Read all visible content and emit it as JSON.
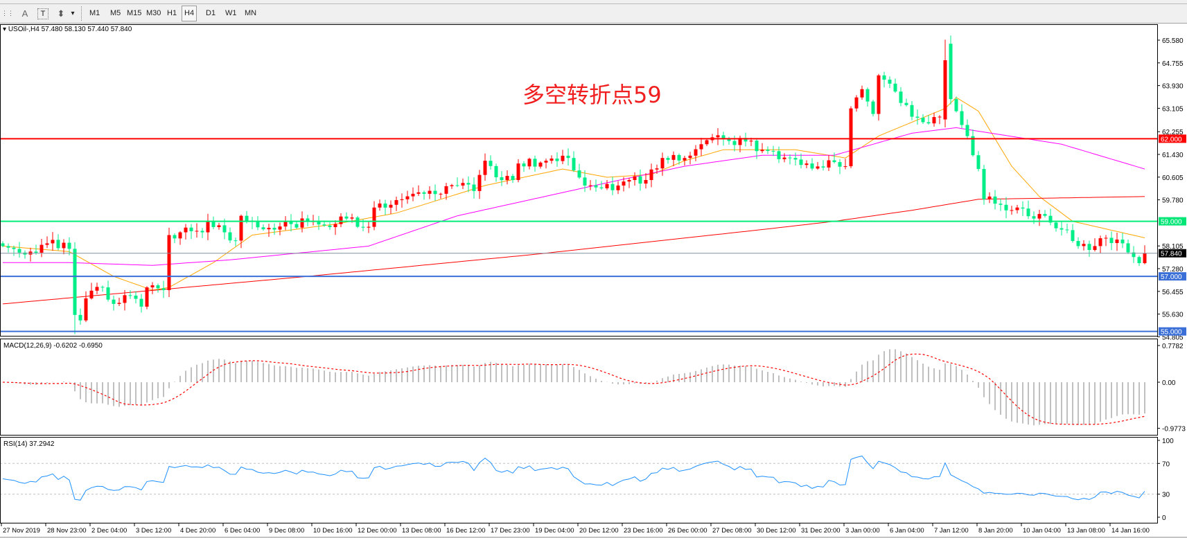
{
  "toolbar": {
    "tools": [
      {
        "name": "period-separator-icon",
        "glyph": "⋮⋮"
      },
      {
        "name": "text-tool",
        "glyph": "A"
      },
      {
        "name": "text-label-tool",
        "glyph": "T"
      },
      {
        "name": "arrows-tool",
        "glyph": "⬍"
      },
      {
        "name": "dropdown",
        "glyph": "▾"
      }
    ],
    "timeframes": [
      "M1",
      "M5",
      "M15",
      "M30",
      "H1",
      "H4",
      "D1",
      "W1",
      "MN"
    ],
    "active_timeframe": "H4"
  },
  "header": {
    "symbol_label": "USOil-,H4",
    "ohlc": "57.480 58.130 57.440 57.840"
  },
  "annotation": "多空转折点59",
  "colors": {
    "bull": "#ff0000",
    "bear": "#00ee88",
    "ma_fast": "#ffa500",
    "ma_mid": "#ff00ff",
    "ma_slow": "#ff0000",
    "rsi": "#1e90ff",
    "macd_hist": "#c0c0c0",
    "macd_signal": "#ff0000"
  },
  "chart_data": {
    "type": "candlestick",
    "price_axis": {
      "range": [
        54.805,
        65.58
      ],
      "ticks": [
        "65.580",
        "64.755",
        "63.930",
        "63.105",
        "62.255",
        "61.430",
        "60.605",
        "59.780",
        "58.105",
        "57.280",
        "56.455",
        "55.630",
        "54.805"
      ]
    },
    "levels": [
      {
        "label": "62.000",
        "value": 62.0,
        "color": "#ff0000"
      },
      {
        "label": "59.000",
        "value": 59.0,
        "color": "#00ee77"
      },
      {
        "label": "57.000",
        "value": 57.0,
        "color": "#3a6fd8"
      },
      {
        "label": "55.000",
        "value": 55.0,
        "color": "#3a6fd8"
      }
    ],
    "current_price": {
      "label": "57.840",
      "value": 57.84
    },
    "close_anchors": [
      [
        0,
        58.1
      ],
      [
        5,
        57.9
      ],
      [
        8,
        58.2
      ],
      [
        12,
        58.0
      ],
      [
        13,
        55.6
      ],
      [
        14,
        55.4
      ],
      [
        15,
        56.2
      ],
      [
        18,
        56.6
      ],
      [
        20,
        56.0
      ],
      [
        23,
        56.3
      ],
      [
        25,
        55.9
      ],
      [
        26,
        56.6
      ],
      [
        29,
        56.5
      ],
      [
        30,
        58.5
      ],
      [
        32,
        58.6
      ],
      [
        36,
        58.6
      ],
      [
        37,
        59.0
      ],
      [
        40,
        58.6
      ],
      [
        42,
        58.3
      ],
      [
        43,
        59.2
      ],
      [
        45,
        59.0
      ],
      [
        49,
        58.7
      ],
      [
        52,
        58.9
      ],
      [
        56,
        59.0
      ],
      [
        60,
        58.9
      ],
      [
        62,
        59.1
      ],
      [
        66,
        58.8
      ],
      [
        67,
        59.5
      ],
      [
        70,
        59.6
      ],
      [
        72,
        59.8
      ],
      [
        74,
        60.0
      ],
      [
        76,
        60.0
      ],
      [
        79,
        60.0
      ],
      [
        82,
        60.3
      ],
      [
        85,
        60.1
      ],
      [
        87,
        61.2
      ],
      [
        89,
        60.6
      ],
      [
        92,
        60.5
      ],
      [
        93,
        61.1
      ],
      [
        98,
        61.2
      ],
      [
        102,
        61.3
      ],
      [
        105,
        60.3
      ],
      [
        108,
        60.2
      ],
      [
        111,
        60.3
      ],
      [
        113,
        60.5
      ],
      [
        116,
        60.5
      ],
      [
        119,
        61.3
      ],
      [
        123,
        61.3
      ],
      [
        126,
        61.8
      ],
      [
        130,
        62.0
      ],
      [
        134,
        61.9
      ],
      [
        137,
        61.6
      ],
      [
        142,
        61.3
      ],
      [
        145,
        61.1
      ],
      [
        152,
        61.0
      ],
      [
        153,
        63.1
      ],
      [
        154,
        63.5
      ],
      [
        155,
        63.8
      ],
      [
        157,
        62.9
      ],
      [
        158,
        64.3
      ],
      [
        160,
        64.0
      ],
      [
        162,
        63.3
      ],
      [
        164,
        62.8
      ],
      [
        166,
        62.6
      ],
      [
        169,
        62.8
      ],
      [
        170,
        64.85,
        62.7
      ],
      [
        171,
        63.44,
        65.45
      ],
      [
        172,
        63.0
      ],
      [
        173,
        62.5
      ],
      [
        175,
        61.4
      ],
      [
        176,
        60.9
      ],
      [
        177,
        59.8
      ],
      [
        178,
        59.9
      ],
      [
        180,
        59.6
      ],
      [
        183,
        59.5
      ],
      [
        186,
        59.1
      ],
      [
        188,
        59.2
      ],
      [
        191,
        58.7
      ],
      [
        194,
        58.1
      ],
      [
        197,
        58.1
      ],
      [
        199,
        58.4
      ],
      [
        202,
        58.2
      ],
      [
        205,
        57.48
      ],
      [
        206,
        57.84,
        57.48
      ]
    ],
    "wick_overrides": [
      [
        13,
        null,
        54.9
      ],
      [
        170,
        65.6,
        null
      ],
      [
        171,
        65.75,
        null
      ],
      [
        206,
        58.13,
        57.44
      ]
    ],
    "candle_count": 207,
    "moving_averages": [
      {
        "color": "#ffa500",
        "points": [
          [
            0,
            58.1
          ],
          [
            12,
            57.9
          ],
          [
            20,
            57.0
          ],
          [
            27,
            56.5
          ],
          [
            30,
            56.6
          ],
          [
            38,
            57.5
          ],
          [
            45,
            58.5
          ],
          [
            60,
            58.9
          ],
          [
            71,
            59.3
          ],
          [
            87,
            60.3
          ],
          [
            101,
            60.9
          ],
          [
            109,
            60.6
          ],
          [
            117,
            60.7
          ],
          [
            123,
            61.2
          ],
          [
            130,
            61.6
          ],
          [
            143,
            61.6
          ],
          [
            152,
            61.3
          ],
          [
            158,
            62.1
          ],
          [
            164,
            62.6
          ],
          [
            170,
            63.1
          ],
          [
            172,
            63.5
          ],
          [
            176,
            63.0
          ],
          [
            182,
            61.0
          ],
          [
            187,
            59.9
          ],
          [
            193,
            59.0
          ],
          [
            206,
            58.4
          ]
        ]
      },
      {
        "color": "#ff00ff",
        "points": [
          [
            0,
            57.5
          ],
          [
            12,
            57.5
          ],
          [
            27,
            57.4
          ],
          [
            41,
            57.6
          ],
          [
            66,
            58.1
          ],
          [
            82,
            59.2
          ],
          [
            109,
            60.4
          ],
          [
            123,
            61.0
          ],
          [
            137,
            61.4
          ],
          [
            150,
            61.4
          ],
          [
            164,
            62.2
          ],
          [
            172,
            62.4
          ],
          [
            191,
            61.8
          ],
          [
            206,
            60.9
          ]
        ]
      },
      {
        "color": "#ff0000",
        "points": [
          [
            0,
            56.0
          ],
          [
            55,
            57.0
          ],
          [
            96,
            57.8
          ],
          [
            137,
            58.7
          ],
          [
            150,
            59.0
          ],
          [
            164,
            59.4
          ],
          [
            176,
            59.8
          ],
          [
            206,
            59.9
          ]
        ]
      }
    ],
    "macd": {
      "label": "MACD(12,26,9) -0.6202 -0.6950",
      "params": [
        12,
        26,
        9
      ],
      "range": [
        -0.9773,
        0.7782
      ],
      "ticks": [
        "0.7782",
        "0.00",
        "-0.9773"
      ]
    },
    "rsi": {
      "label": "RSI(14) 37.2942",
      "period": 14,
      "levels": [
        70,
        30
      ],
      "ticks": [
        "100",
        "70",
        "30",
        "0"
      ]
    },
    "time_labels": [
      "27 Nov 2019",
      "28 Nov 23:00",
      "2 Dec 04:00",
      "3 Dec 12:00",
      "4 Dec 20:00",
      "6 Dec 04:00",
      "9 Dec 08:00",
      "10 Dec 16:00",
      "12 Dec 00:00",
      "13 Dec 08:00",
      "16 Dec 12:00",
      "17 Dec 23:00",
      "19 Dec 04:00",
      "20 Dec 12:00",
      "23 Dec 16:00",
      "26 Dec 00:00",
      "27 Dec 08:00",
      "30 Dec 12:00",
      "31 Dec 20:00",
      "3 Jan 00:00",
      "6 Jan 04:00",
      "7 Jan 12:00",
      "8 Jan 20:00",
      "10 Jan 04:00",
      "13 Jan 08:00",
      "14 Jan 16:00"
    ]
  }
}
